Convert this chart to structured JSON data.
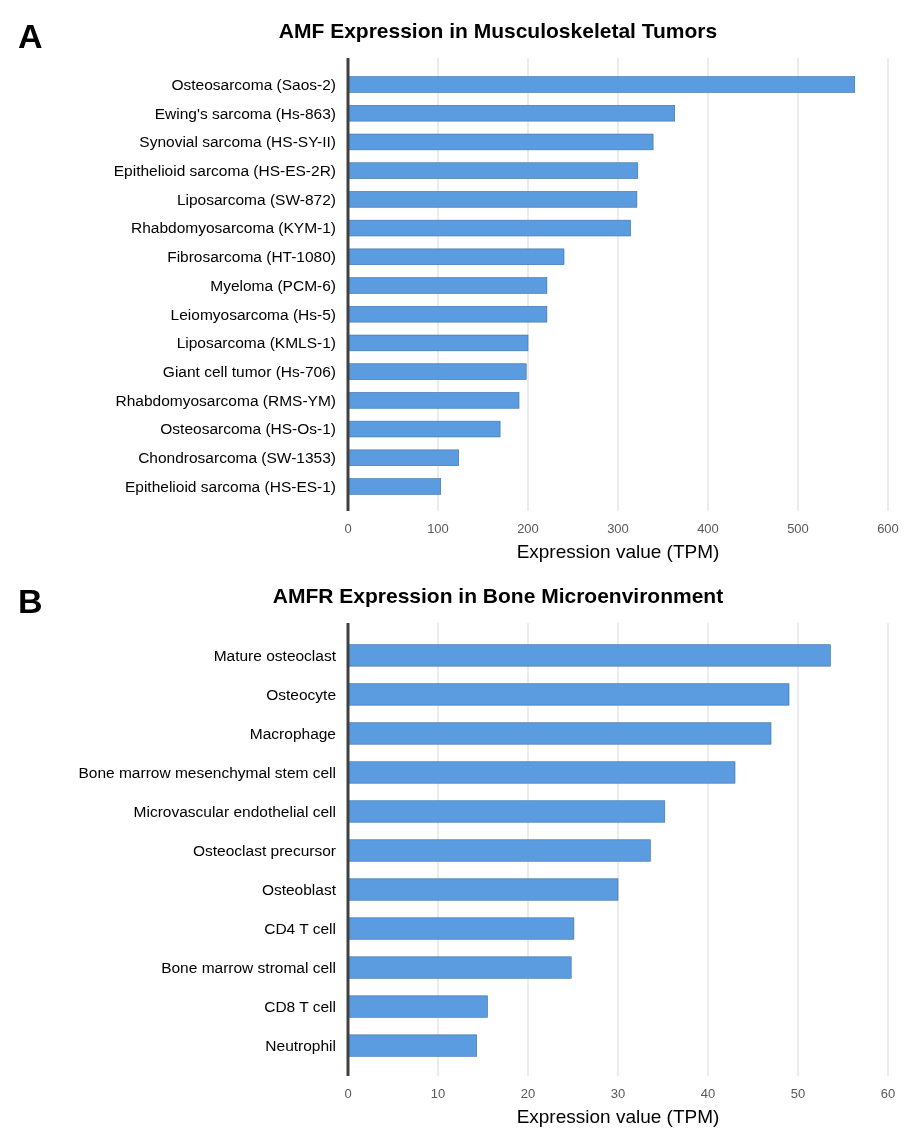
{
  "chart_data": [
    {
      "type": "bar",
      "orientation": "horizontal",
      "title": "AMF Expression in Musculoskeletal Tumors",
      "xlabel": "Expression value (TPM)",
      "annotations": [
        "A"
      ],
      "categories": [
        "Osteosarcoma (Saos-2)",
        "Ewing's sarcoma (Hs-863)",
        "Synovial sarcoma (HS-SY-II)",
        "Epithelioid sarcoma (HS-ES-2R)",
        "Liposarcoma (SW-872)",
        "Rhabdomyosarcoma (KYM-1)",
        "Fibrosarcoma (HT-1080)",
        "Myeloma (PCM-6)",
        "Leiomyosarcoma (Hs-5)",
        "Liposarcoma (KMLS-1)",
        "Giant cell tumor (Hs-706)",
        "Rhabdomyosarcoma (RMS-YM)",
        "Osteosarcoma (HS-Os-1)",
        "Chondrosarcoma (SW-1353)",
        "Epithelioid sarcoma (HS-ES-1)"
      ],
      "values": [
        563,
        363,
        339,
        322,
        321,
        314,
        240,
        221,
        221,
        200,
        198,
        190,
        169,
        123,
        103
      ],
      "color": "#5b9bdf",
      "xlim": [
        0,
        600
      ],
      "xticks": [
        0,
        100,
        200,
        300,
        400,
        500,
        600
      ],
      "grid": "x"
    },
    {
      "type": "bar",
      "orientation": "horizontal",
      "title": "AMFR Expression in Bone Microenvironment",
      "xlabel": "Expression value (TPM)",
      "annotations": [
        "B"
      ],
      "categories": [
        "Mature osteoclast",
        "Osteocyte",
        "Macrophage",
        "Bone marrow mesenchymal stem cell",
        "Microvascular endothelial cell",
        "Osteoclast precursor",
        "Osteoblast",
        "CD4 T cell",
        "Bone marrow stromal cell",
        "CD8 T cell",
        "Neutrophil"
      ],
      "values": [
        53.6,
        49,
        47,
        43,
        35.2,
        33.6,
        30,
        25.1,
        24.8,
        15.5,
        14.3
      ],
      "color": "#5b9bdf",
      "xlim": [
        0,
        60
      ],
      "xticks": [
        0,
        10,
        20,
        30,
        40,
        50,
        60
      ],
      "grid": "x"
    }
  ]
}
